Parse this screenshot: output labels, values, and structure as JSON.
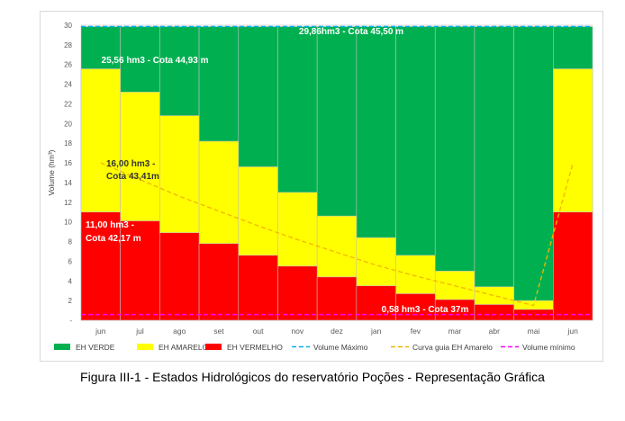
{
  "chart_data": {
    "type": "bar",
    "ylabel": "Volume (hm³)",
    "ylim": [
      0,
      30
    ],
    "yticks": [
      "-",
      "2",
      "4",
      "6",
      "8",
      "10",
      "12",
      "14",
      "16",
      "18",
      "20",
      "22",
      "24",
      "26",
      "28",
      "30"
    ],
    "categories": [
      "jun",
      "jul",
      "ago",
      "set",
      "out",
      "nov",
      "dez",
      "jan",
      "fev",
      "mar",
      "abr",
      "mai",
      "jun"
    ],
    "series": [
      {
        "name": "EH VERDE",
        "color": "#00b050",
        "values": [
          29.86,
          29.86,
          29.86,
          29.86,
          29.86,
          29.86,
          29.86,
          29.86,
          29.86,
          29.86,
          29.86,
          29.86,
          29.86
        ]
      },
      {
        "name": "EH AMARELO",
        "color": "#ffff00",
        "values": [
          25.56,
          23.2,
          20.8,
          18.2,
          15.6,
          13.0,
          10.6,
          8.4,
          6.6,
          5.0,
          3.4,
          2.0,
          25.56
        ]
      },
      {
        "name": "EH VERMELHO",
        "color": "#ff0000",
        "values": [
          11.0,
          10.1,
          8.9,
          7.8,
          6.6,
          5.5,
          4.4,
          3.5,
          2.7,
          2.1,
          1.6,
          1.1,
          11.0
        ]
      }
    ],
    "lines": [
      {
        "name": "Volume Máximo",
        "color": "#00b0f0",
        "dash": "dashed",
        "values": [
          29.86,
          29.86
        ]
      },
      {
        "name": "Curva guia EH Amarelo",
        "color": "#f4b400",
        "dash": "dashed",
        "values": [
          16.0,
          14.3,
          12.6,
          11.1,
          9.6,
          8.2,
          6.9,
          5.6,
          4.5,
          3.5,
          2.5,
          1.5,
          16.0
        ]
      },
      {
        "name": "Volume mínimo",
        "color": "#ff00ff",
        "dash": "dashed",
        "values": [
          0.58,
          0.58
        ]
      }
    ],
    "annotations": [
      {
        "id": "max",
        "text": "29,86hm3 - Cota  45,50 m",
        "color": "#ffffff"
      },
      {
        "id": "amarelo",
        "text": "25,56 hm3 - Cota 44,93 m",
        "color": "#ffffff"
      },
      {
        "id": "curva1",
        "text": "16,00 hm3 -",
        "color": "#333333"
      },
      {
        "id": "curva2",
        "text": "Cota 43,41m",
        "color": "#333333"
      },
      {
        "id": "verm1",
        "text": "11,00 hm3 -",
        "color": "#ffffff"
      },
      {
        "id": "verm2",
        "text": "Cota 42,17 m",
        "color": "#ffffff"
      },
      {
        "id": "min",
        "text": "0,58 hm3 - Cota 37m",
        "color": "#ffffff"
      }
    ],
    "legend": {
      "position": "bottom",
      "entries": [
        "EH VERDE",
        "EH AMARELO",
        "EH VERMELHO",
        "Volume Máximo",
        "Curva guia EH Amarelo",
        "Volume mínimo"
      ]
    }
  },
  "caption": "Figura III-1 - Estados Hidrológicos do reservatório Poções - Representação Gráfica"
}
